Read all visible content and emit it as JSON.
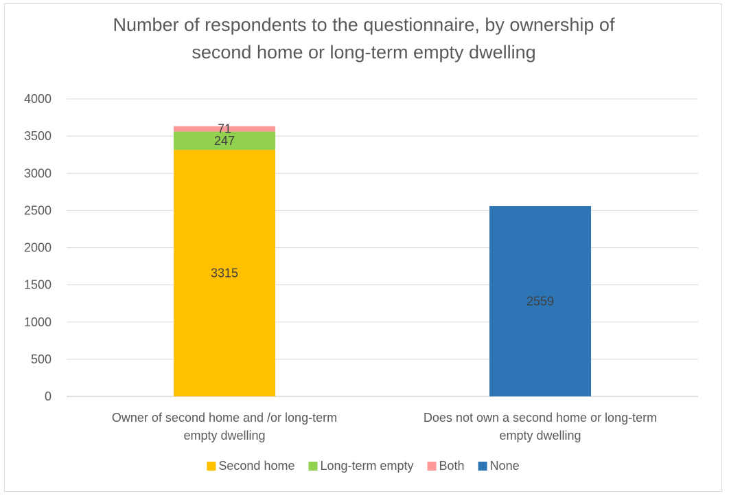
{
  "chart_data": {
    "type": "bar",
    "stacked": true,
    "title_lines": [
      "Number of respondents to the questionnaire, by ownership of",
      "second home or long-term empty dwelling"
    ],
    "categories": [
      [
        "Owner of second home and /or long-term",
        "empty dwelling"
      ],
      [
        "Does not own a second home or long-term",
        "empty dwelling"
      ]
    ],
    "series": [
      {
        "name": "Second home",
        "color": "#FFC000",
        "values": [
          3315,
          null
        ]
      },
      {
        "name": "Long-term empty",
        "color": "#92D050",
        "values": [
          247,
          null
        ]
      },
      {
        "name": "Both",
        "color": "#FF9999",
        "values": [
          71,
          null
        ]
      },
      {
        "name": "None",
        "color": "#2E75B6",
        "values": [
          null,
          2559
        ]
      }
    ],
    "ylim": [
      0,
      4000
    ],
    "yticks": [
      0,
      500,
      1000,
      1500,
      2000,
      2500,
      3000,
      3500,
      4000
    ],
    "grid": true,
    "legend_position": "bottom"
  }
}
